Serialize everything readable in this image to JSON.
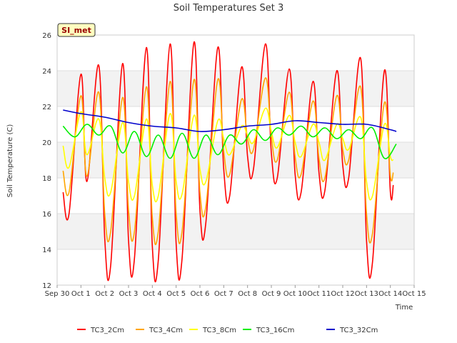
{
  "chart_data": {
    "type": "line",
    "title": "Soil Temperatures Set 3",
    "xlabel": "Time",
    "ylabel": "Soil Temperature (C)",
    "ylim": [
      12,
      26
    ],
    "yticks": [
      12,
      14,
      16,
      18,
      20,
      22,
      24,
      26
    ],
    "xlim": [
      "2024-09-30",
      "2024-10-15"
    ],
    "xticks": [
      "Sep 30",
      "Oct 1",
      "Oct 2",
      "Oct 3",
      "Oct 4",
      "Oct 5",
      "Oct 6",
      "Oct 7",
      "Oct 8",
      "Oct 9",
      "Oct 10",
      "Oct 11",
      "Oct 12",
      "Oct 13",
      "Oct 14",
      "Oct 15"
    ],
    "grid": "horizontal bands",
    "legend_position": "bottom",
    "station_badge": "SI_met",
    "series": [
      {
        "name": "TC3_2Cm",
        "color": "#ff0000",
        "x": [
          "Sep 30 06:00",
          "Sep 30 12:00",
          "Oct 1 00:00",
          "Oct 1 06:00",
          "Oct 1 18:00",
          "Oct 2 00:00",
          "Oct 2 06:00",
          "Oct 2 18:00",
          "Oct 3 00:00",
          "Oct 3 06:00",
          "Oct 3 18:00",
          "Oct 4 00:00",
          "Oct 4 06:00",
          "Oct 4 18:00",
          "Oct 5 00:00",
          "Oct 5 06:00",
          "Oct 5 18:00",
          "Oct 6 00:00",
          "Oct 6 06:00",
          "Oct 6 18:00",
          "Oct 7 00:00",
          "Oct 7 06:00",
          "Oct 7 18:00",
          "Oct 8 00:00",
          "Oct 8 06:00",
          "Oct 8 18:00",
          "Oct 9 00:00",
          "Oct 9 06:00",
          "Oct 9 18:00",
          "Oct 10 00:00",
          "Oct 10 06:00",
          "Oct 10 18:00",
          "Oct 11 00:00",
          "Oct 11 06:00",
          "Oct 11 18:00",
          "Oct 12 00:00",
          "Oct 12 06:00",
          "Oct 12 18:00",
          "Oct 13 00:00",
          "Oct 13 06:00",
          "Oct 13 18:00",
          "Oct 14 00:00",
          "Oct 14 03:00"
        ],
        "y": [
          17.2,
          16.0,
          23.8,
          17.8,
          24.3,
          14.6,
          13.1,
          24.4,
          14.5,
          13.5,
          25.3,
          14.2,
          13.4,
          25.5,
          14.3,
          13.5,
          25.6,
          16.2,
          15.5,
          25.3,
          18.5,
          17.0,
          24.2,
          19.2,
          18.5,
          25.5,
          19.4,
          18.0,
          24.1,
          18.2,
          17.2,
          23.4,
          18.3,
          17.3,
          24.0,
          18.7,
          18.0,
          24.7,
          14.5,
          13.3,
          24.0,
          17.2,
          17.6
        ]
      },
      {
        "name": "TC3_4Cm",
        "color": "#ffa500",
        "x": [
          "Sep 30 06:00",
          "Sep 30 12:00",
          "Oct 1 00:00",
          "Oct 1 06:00",
          "Oct 1 18:00",
          "Oct 2 00:00",
          "Oct 2 06:00",
          "Oct 2 18:00",
          "Oct 3 00:00",
          "Oct 3 06:00",
          "Oct 3 18:00",
          "Oct 4 00:00",
          "Oct 4 06:00",
          "Oct 4 18:00",
          "Oct 5 00:00",
          "Oct 5 06:00",
          "Oct 5 18:00",
          "Oct 6 00:00",
          "Oct 6 06:00",
          "Oct 6 18:00",
          "Oct 7 00:00",
          "Oct 7 06:00",
          "Oct 7 18:00",
          "Oct 8 00:00",
          "Oct 8 06:00",
          "Oct 8 18:00",
          "Oct 9 00:00",
          "Oct 9 06:00",
          "Oct 9 18:00",
          "Oct 10 00:00",
          "Oct 10 06:00",
          "Oct 10 18:00",
          "Oct 11 00:00",
          "Oct 11 06:00",
          "Oct 11 18:00",
          "Oct 12 00:00",
          "Oct 12 06:00",
          "Oct 12 18:00",
          "Oct 13 00:00",
          "Oct 13 06:00",
          "Oct 13 18:00",
          "Oct 14 00:00",
          "Oct 14 03:00"
        ],
        "y": [
          18.4,
          17.2,
          22.6,
          18.1,
          22.8,
          16.0,
          15.0,
          22.5,
          16.2,
          15.0,
          23.1,
          15.8,
          15.0,
          23.4,
          16.0,
          15.0,
          23.5,
          17.2,
          16.4,
          23.5,
          19.5,
          18.2,
          22.4,
          20.2,
          19.6,
          23.6,
          20.3,
          19.0,
          22.8,
          19.2,
          18.2,
          22.3,
          19.1,
          18.0,
          22.6,
          19.6,
          19.0,
          23.1,
          16.0,
          14.9,
          22.2,
          18.1,
          18.3
        ]
      },
      {
        "name": "TC3_8Cm",
        "color": "#ffff00",
        "x": [
          "Sep 30 06:00",
          "Sep 30 12:00",
          "Oct 1 00:00",
          "Oct 1 06:00",
          "Oct 1 18:00",
          "Oct 2 00:00",
          "Oct 2 06:00",
          "Oct 2 18:00",
          "Oct 3 00:00",
          "Oct 3 06:00",
          "Oct 3 18:00",
          "Oct 4 00:00",
          "Oct 4 06:00",
          "Oct 4 18:00",
          "Oct 5 00:00",
          "Oct 5 06:00",
          "Oct 5 18:00",
          "Oct 6 00:00",
          "Oct 6 06:00",
          "Oct 6 18:00",
          "Oct 7 00:00",
          "Oct 7 06:00",
          "Oct 7 18:00",
          "Oct 8 00:00",
          "Oct 8 06:00",
          "Oct 8 18:00",
          "Oct 9 00:00",
          "Oct 9 06:00",
          "Oct 9 18:00",
          "Oct 10 00:00",
          "Oct 10 06:00",
          "Oct 10 18:00",
          "Oct 11 00:00",
          "Oct 11 06:00",
          "Oct 11 18:00",
          "Oct 12 00:00",
          "Oct 12 06:00",
          "Oct 12 18:00",
          "Oct 13 00:00",
          "Oct 13 06:00",
          "Oct 13 18:00",
          "Oct 14 00:00",
          "Oct 14 03:00"
        ],
        "y": [
          19.8,
          18.6,
          21.7,
          19.3,
          21.3,
          18.0,
          17.2,
          21.1,
          17.8,
          17.0,
          21.3,
          17.6,
          17.0,
          21.6,
          17.8,
          17.1,
          21.5,
          18.5,
          17.8,
          21.2,
          20.2,
          19.3,
          20.9,
          20.4,
          20.0,
          21.9,
          20.6,
          19.7,
          21.5,
          20.0,
          19.2,
          21.0,
          20.0,
          19.0,
          21.0,
          20.2,
          19.6,
          21.4,
          17.8,
          17.0,
          21.0,
          19.2,
          19.0
        ]
      },
      {
        "name": "TC3_16Cm",
        "color": "#00ee00",
        "x": [
          "Sep 30 06:00",
          "Sep 30 18:00",
          "Oct 1 06:00",
          "Oct 1 18:00",
          "Oct 2 06:00",
          "Oct 2 18:00",
          "Oct 3 06:00",
          "Oct 3 18:00",
          "Oct 4 06:00",
          "Oct 4 18:00",
          "Oct 5 06:00",
          "Oct 5 18:00",
          "Oct 6 06:00",
          "Oct 6 18:00",
          "Oct 7 06:00",
          "Oct 7 18:00",
          "Oct 8 06:00",
          "Oct 8 18:00",
          "Oct 9 06:00",
          "Oct 9 18:00",
          "Oct 10 06:00",
          "Oct 10 18:00",
          "Oct 11 06:00",
          "Oct 11 18:00",
          "Oct 12 06:00",
          "Oct 12 18:00",
          "Oct 13 06:00",
          "Oct 13 18:00",
          "Oct 14 06:00"
        ],
        "y": [
          20.9,
          20.3,
          21.0,
          20.4,
          20.9,
          19.4,
          20.6,
          19.2,
          20.4,
          19.1,
          20.5,
          19.1,
          20.4,
          19.3,
          20.4,
          19.9,
          20.7,
          20.1,
          20.8,
          20.4,
          20.9,
          20.3,
          20.8,
          20.2,
          20.7,
          20.2,
          20.8,
          19.1,
          19.9
        ]
      },
      {
        "name": "TC3_32Cm",
        "color": "#0000cc",
        "x": [
          "Sep 30 06:00",
          "Oct 1 00:00",
          "Oct 2 00:00",
          "Oct 3 00:00",
          "Oct 4 00:00",
          "Oct 5 00:00",
          "Oct 6 00:00",
          "Oct 7 00:00",
          "Oct 8 00:00",
          "Oct 9 00:00",
          "Oct 10 00:00",
          "Oct 11 00:00",
          "Oct 12 00:00",
          "Oct 13 00:00",
          "Oct 14 00:00",
          "Oct 14 06:00"
        ],
        "y": [
          21.8,
          21.6,
          21.4,
          21.1,
          20.9,
          20.8,
          20.6,
          20.7,
          20.9,
          21.0,
          21.2,
          21.1,
          21.0,
          21.0,
          20.7,
          20.6
        ]
      }
    ]
  }
}
